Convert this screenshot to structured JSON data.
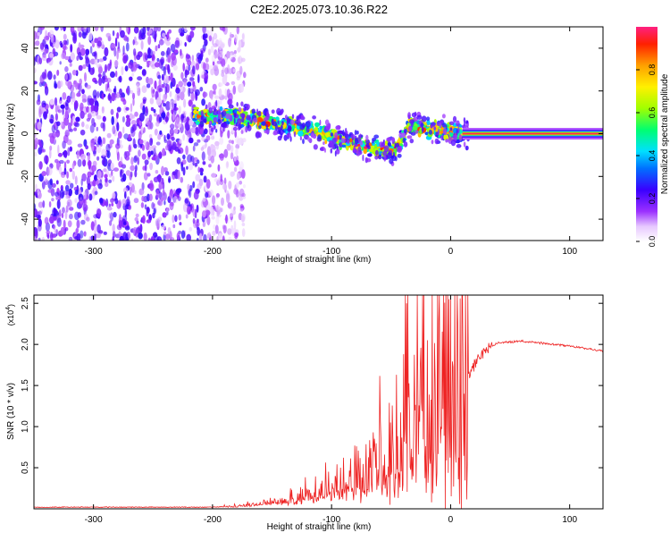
{
  "title": "C2E2.2025.073.10.36.R22",
  "chart_data": [
    {
      "type": "heatmap",
      "xlabel": "Height of straight line (km)",
      "ylabel": "Frequency (Hz)",
      "xlim": [
        -350,
        128
      ],
      "ylim": [
        -50,
        50
      ],
      "xticks": [
        -300,
        -200,
        -100,
        0,
        100
      ],
      "yticks": [
        -40,
        -20,
        0,
        20,
        40
      ],
      "colorbar": {
        "label": "Normalized spectral amplitude",
        "range": [
          0,
          1
        ],
        "ticks": [
          "0.0",
          "0.2",
          "0.4",
          "0.6",
          "0.8"
        ],
        "tick_values": [
          0.0,
          0.2,
          0.4,
          0.6,
          0.8
        ]
      },
      "features": {
        "noise_region_x": [
          -350,
          -185
        ],
        "signal_track": [
          [
            -215,
            8
          ],
          [
            -180,
            8
          ],
          [
            -150,
            5
          ],
          [
            -120,
            2
          ],
          [
            -100,
            -2
          ],
          [
            -80,
            -5
          ],
          [
            -60,
            -8
          ],
          [
            -45,
            -7
          ],
          [
            -35,
            4
          ],
          [
            -25,
            2
          ],
          [
            -10,
            2
          ],
          [
            0,
            1
          ],
          [
            10,
            0
          ],
          [
            128,
            0
          ]
        ],
        "carrier_x": [
          10,
          128
        ],
        "carrier_freq": 0
      }
    },
    {
      "type": "line",
      "xlabel": "Height of straight line (km)",
      "ylabel": "SNR (10 * v/v)",
      "ylabel_exponent": "(x10",
      "ylabel_exponent_power": "4",
      "exponent_close": ")",
      "xlim": [
        -350,
        128
      ],
      "ylim": [
        0,
        2.6
      ],
      "xticks": [
        -300,
        -200,
        -100,
        0,
        100
      ],
      "yticks": [
        0.5,
        1.0,
        1.5,
        2.0,
        2.5
      ],
      "ytick_labels": [
        "0.5",
        "1.0",
        "1.5",
        "2.0",
        "2.5"
      ],
      "series": [
        {
          "name": "SNR",
          "color": "#ee2222",
          "envelope": [
            [
              -350,
              0.02
            ],
            [
              -200,
              0.02
            ],
            [
              -170,
              0.04
            ],
            [
              -140,
              0.1
            ],
            [
              -110,
              0.2
            ],
            [
              -90,
              0.3
            ],
            [
              -70,
              0.4
            ],
            [
              -50,
              0.6
            ],
            [
              -40,
              0.8
            ],
            [
              -30,
              1.1
            ],
            [
              -20,
              1.3
            ],
            [
              -10,
              1.4
            ],
            [
              0,
              1.45
            ],
            [
              10,
              1.5
            ],
            [
              20,
              1.75
            ],
            [
              30,
              1.95
            ],
            [
              40,
              2.02
            ],
            [
              60,
              2.04
            ],
            [
              80,
              2.01
            ],
            [
              100,
              1.98
            ],
            [
              128,
              1.92
            ]
          ]
        }
      ]
    }
  ]
}
